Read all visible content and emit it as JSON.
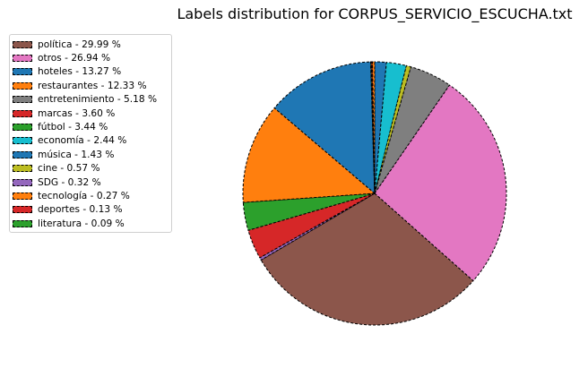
{
  "chart_data": {
    "type": "pie",
    "title": "Labels distribution for CORPUS_SERVICIO_ESCUCHA.txt",
    "start_angle_deg": 90,
    "direction": "clockwise",
    "legend_position": "top-left",
    "slices": [
      {
        "label": "música",
        "value": 1.43,
        "color": "#1f77b4"
      },
      {
        "label": "economía",
        "value": 2.44,
        "color": "#17becf"
      },
      {
        "label": "cine",
        "value": 0.57,
        "color": "#bcbd22"
      },
      {
        "label": "entretenimiento",
        "value": 5.18,
        "color": "#7f7f7f"
      },
      {
        "label": "otros",
        "value": 26.94,
        "color": "#e377c2"
      },
      {
        "label": "política",
        "value": 29.99,
        "color": "#8c564b"
      },
      {
        "label": "SDG",
        "value": 0.32,
        "color": "#9467bd"
      },
      {
        "label": "marcas",
        "value": 3.6,
        "color": "#d62728"
      },
      {
        "label": "fútbol",
        "value": 3.44,
        "color": "#2ca02c"
      },
      {
        "label": "restaurantes",
        "value": 12.33,
        "color": "#ff7f0e"
      },
      {
        "label": "hoteles",
        "value": 13.27,
        "color": "#1f77b4"
      },
      {
        "label": "literatura",
        "value": 0.09,
        "color": "#2ca02c"
      },
      {
        "label": "deportes",
        "value": 0.13,
        "color": "#d62728"
      },
      {
        "label": "tecnología",
        "value": 0.27,
        "color": "#ff7f0e"
      }
    ],
    "legend": [
      {
        "label": "política - 29.99 %",
        "color": "#8c564b"
      },
      {
        "label": "otros - 26.94 %",
        "color": "#e377c2"
      },
      {
        "label": "hoteles - 13.27 %",
        "color": "#1f77b4"
      },
      {
        "label": "restaurantes - 12.33 %",
        "color": "#ff7f0e"
      },
      {
        "label": "entretenimiento - 5.18 %",
        "color": "#7f7f7f"
      },
      {
        "label": "marcas - 3.60 %",
        "color": "#d62728"
      },
      {
        "label": "fútbol - 3.44 %",
        "color": "#2ca02c"
      },
      {
        "label": "economía - 2.44 %",
        "color": "#17becf"
      },
      {
        "label": "música - 1.43 %",
        "color": "#1f77b4"
      },
      {
        "label": "cine - 0.57 %",
        "color": "#bcbd22"
      },
      {
        "label": "SDG - 0.32 %",
        "color": "#9467bd"
      },
      {
        "label": "tecnología - 0.27 %",
        "color": "#ff7f0e"
      },
      {
        "label": "deportes - 0.13 %",
        "color": "#d62728"
      },
      {
        "label": "literatura - 0.09 %",
        "color": "#2ca02c"
      }
    ]
  }
}
